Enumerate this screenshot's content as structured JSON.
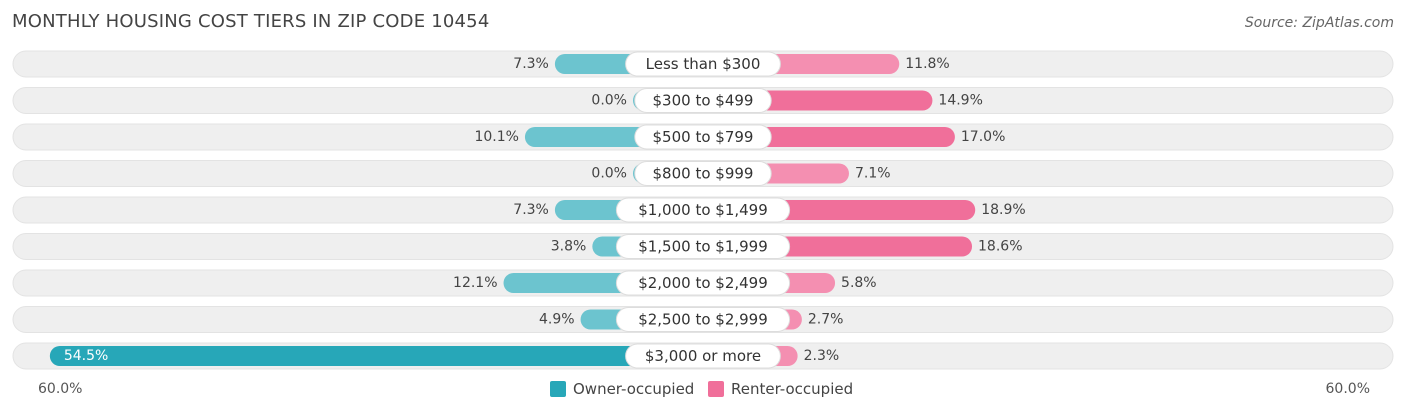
{
  "header": {
    "title": "MONTHLY HOUSING COST TIERS IN ZIP CODE 10454",
    "source": "Source: ZipAtlas.com"
  },
  "axis": {
    "left_label": "60.0%",
    "right_label": "60.0%"
  },
  "legend": {
    "owner_label": "Owner-occupied",
    "renter_label": "Renter-occupied"
  },
  "colors": {
    "owner": "#6cc4cf",
    "owner_highlight": "#27a7b8",
    "renter": "#f48fb1",
    "renter_strong": "#f06f9a",
    "row_bg": "#efefef"
  },
  "chart_data": {
    "type": "bar",
    "orientation": "horizontal-diverging",
    "title": "MONTHLY HOUSING COST TIERS IN ZIP CODE 10454",
    "xlim": [
      -60,
      60
    ],
    "categories": [
      "Less than $300",
      "$300 to $499",
      "$500 to $799",
      "$800 to $999",
      "$1,000 to $1,499",
      "$1,500 to $1,999",
      "$2,000 to $2,499",
      "$2,500 to $2,999",
      "$3,000 or more"
    ],
    "series": [
      {
        "name": "Owner-occupied",
        "values": [
          7.3,
          0.0,
          10.1,
          0.0,
          7.3,
          3.8,
          12.1,
          4.9,
          54.5
        ],
        "labels": [
          "7.3%",
          "0.0%",
          "10.1%",
          "0.0%",
          "7.3%",
          "3.8%",
          "12.1%",
          "4.9%",
          "54.5%"
        ]
      },
      {
        "name": "Renter-occupied",
        "values": [
          11.8,
          14.9,
          17.0,
          7.1,
          18.9,
          18.6,
          5.8,
          2.7,
          2.3
        ],
        "labels": [
          "11.8%",
          "14.9%",
          "17.0%",
          "7.1%",
          "18.9%",
          "18.6%",
          "5.8%",
          "2.7%",
          "2.3%"
        ]
      }
    ]
  }
}
